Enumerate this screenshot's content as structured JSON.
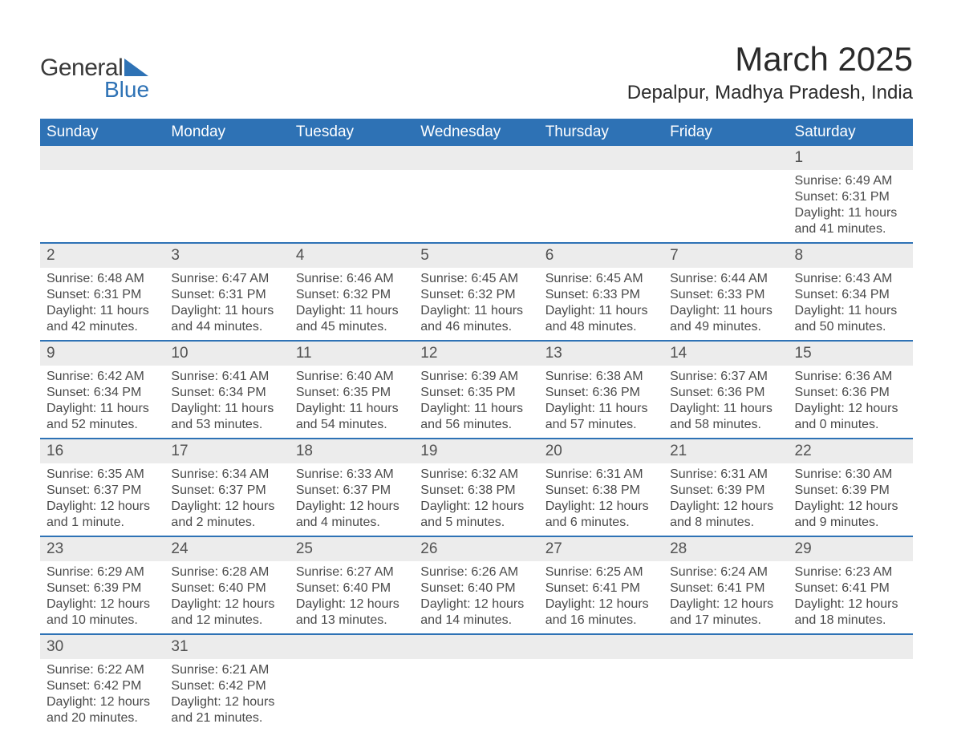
{
  "logo": {
    "top": "General",
    "bottom": "Blue"
  },
  "title": "March 2025",
  "location": "Depalpur, Madhya Pradesh, India",
  "colors": {
    "header_bg": "#2e72b5",
    "daynum_bg": "#ececec",
    "text": "#4a4a4a",
    "row_border": "#2e72b5"
  },
  "weekdays": [
    "Sunday",
    "Monday",
    "Tuesday",
    "Wednesday",
    "Thursday",
    "Friday",
    "Saturday"
  ],
  "labels": {
    "sunrise": "Sunrise:",
    "sunset": "Sunset:",
    "daylight": "Daylight:"
  },
  "weeks": [
    [
      null,
      null,
      null,
      null,
      null,
      null,
      {
        "d": "1",
        "sunrise": "6:49 AM",
        "sunset": "6:31 PM",
        "daylight": "11 hours and 41 minutes."
      }
    ],
    [
      {
        "d": "2",
        "sunrise": "6:48 AM",
        "sunset": "6:31 PM",
        "daylight": "11 hours and 42 minutes."
      },
      {
        "d": "3",
        "sunrise": "6:47 AM",
        "sunset": "6:31 PM",
        "daylight": "11 hours and 44 minutes."
      },
      {
        "d": "4",
        "sunrise": "6:46 AM",
        "sunset": "6:32 PM",
        "daylight": "11 hours and 45 minutes."
      },
      {
        "d": "5",
        "sunrise": "6:45 AM",
        "sunset": "6:32 PM",
        "daylight": "11 hours and 46 minutes."
      },
      {
        "d": "6",
        "sunrise": "6:45 AM",
        "sunset": "6:33 PM",
        "daylight": "11 hours and 48 minutes."
      },
      {
        "d": "7",
        "sunrise": "6:44 AM",
        "sunset": "6:33 PM",
        "daylight": "11 hours and 49 minutes."
      },
      {
        "d": "8",
        "sunrise": "6:43 AM",
        "sunset": "6:34 PM",
        "daylight": "11 hours and 50 minutes."
      }
    ],
    [
      {
        "d": "9",
        "sunrise": "6:42 AM",
        "sunset": "6:34 PM",
        "daylight": "11 hours and 52 minutes."
      },
      {
        "d": "10",
        "sunrise": "6:41 AM",
        "sunset": "6:34 PM",
        "daylight": "11 hours and 53 minutes."
      },
      {
        "d": "11",
        "sunrise": "6:40 AM",
        "sunset": "6:35 PM",
        "daylight": "11 hours and 54 minutes."
      },
      {
        "d": "12",
        "sunrise": "6:39 AM",
        "sunset": "6:35 PM",
        "daylight": "11 hours and 56 minutes."
      },
      {
        "d": "13",
        "sunrise": "6:38 AM",
        "sunset": "6:36 PM",
        "daylight": "11 hours and 57 minutes."
      },
      {
        "d": "14",
        "sunrise": "6:37 AM",
        "sunset": "6:36 PM",
        "daylight": "11 hours and 58 minutes."
      },
      {
        "d": "15",
        "sunrise": "6:36 AM",
        "sunset": "6:36 PM",
        "daylight": "12 hours and 0 minutes."
      }
    ],
    [
      {
        "d": "16",
        "sunrise": "6:35 AM",
        "sunset": "6:37 PM",
        "daylight": "12 hours and 1 minute."
      },
      {
        "d": "17",
        "sunrise": "6:34 AM",
        "sunset": "6:37 PM",
        "daylight": "12 hours and 2 minutes."
      },
      {
        "d": "18",
        "sunrise": "6:33 AM",
        "sunset": "6:37 PM",
        "daylight": "12 hours and 4 minutes."
      },
      {
        "d": "19",
        "sunrise": "6:32 AM",
        "sunset": "6:38 PM",
        "daylight": "12 hours and 5 minutes."
      },
      {
        "d": "20",
        "sunrise": "6:31 AM",
        "sunset": "6:38 PM",
        "daylight": "12 hours and 6 minutes."
      },
      {
        "d": "21",
        "sunrise": "6:31 AM",
        "sunset": "6:39 PM",
        "daylight": "12 hours and 8 minutes."
      },
      {
        "d": "22",
        "sunrise": "6:30 AM",
        "sunset": "6:39 PM",
        "daylight": "12 hours and 9 minutes."
      }
    ],
    [
      {
        "d": "23",
        "sunrise": "6:29 AM",
        "sunset": "6:39 PM",
        "daylight": "12 hours and 10 minutes."
      },
      {
        "d": "24",
        "sunrise": "6:28 AM",
        "sunset": "6:40 PM",
        "daylight": "12 hours and 12 minutes."
      },
      {
        "d": "25",
        "sunrise": "6:27 AM",
        "sunset": "6:40 PM",
        "daylight": "12 hours and 13 minutes."
      },
      {
        "d": "26",
        "sunrise": "6:26 AM",
        "sunset": "6:40 PM",
        "daylight": "12 hours and 14 minutes."
      },
      {
        "d": "27",
        "sunrise": "6:25 AM",
        "sunset": "6:41 PM",
        "daylight": "12 hours and 16 minutes."
      },
      {
        "d": "28",
        "sunrise": "6:24 AM",
        "sunset": "6:41 PM",
        "daylight": "12 hours and 17 minutes."
      },
      {
        "d": "29",
        "sunrise": "6:23 AM",
        "sunset": "6:41 PM",
        "daylight": "12 hours and 18 minutes."
      }
    ],
    [
      {
        "d": "30",
        "sunrise": "6:22 AM",
        "sunset": "6:42 PM",
        "daylight": "12 hours and 20 minutes."
      },
      {
        "d": "31",
        "sunrise": "6:21 AM",
        "sunset": "6:42 PM",
        "daylight": "12 hours and 21 minutes."
      },
      null,
      null,
      null,
      null,
      null
    ]
  ]
}
